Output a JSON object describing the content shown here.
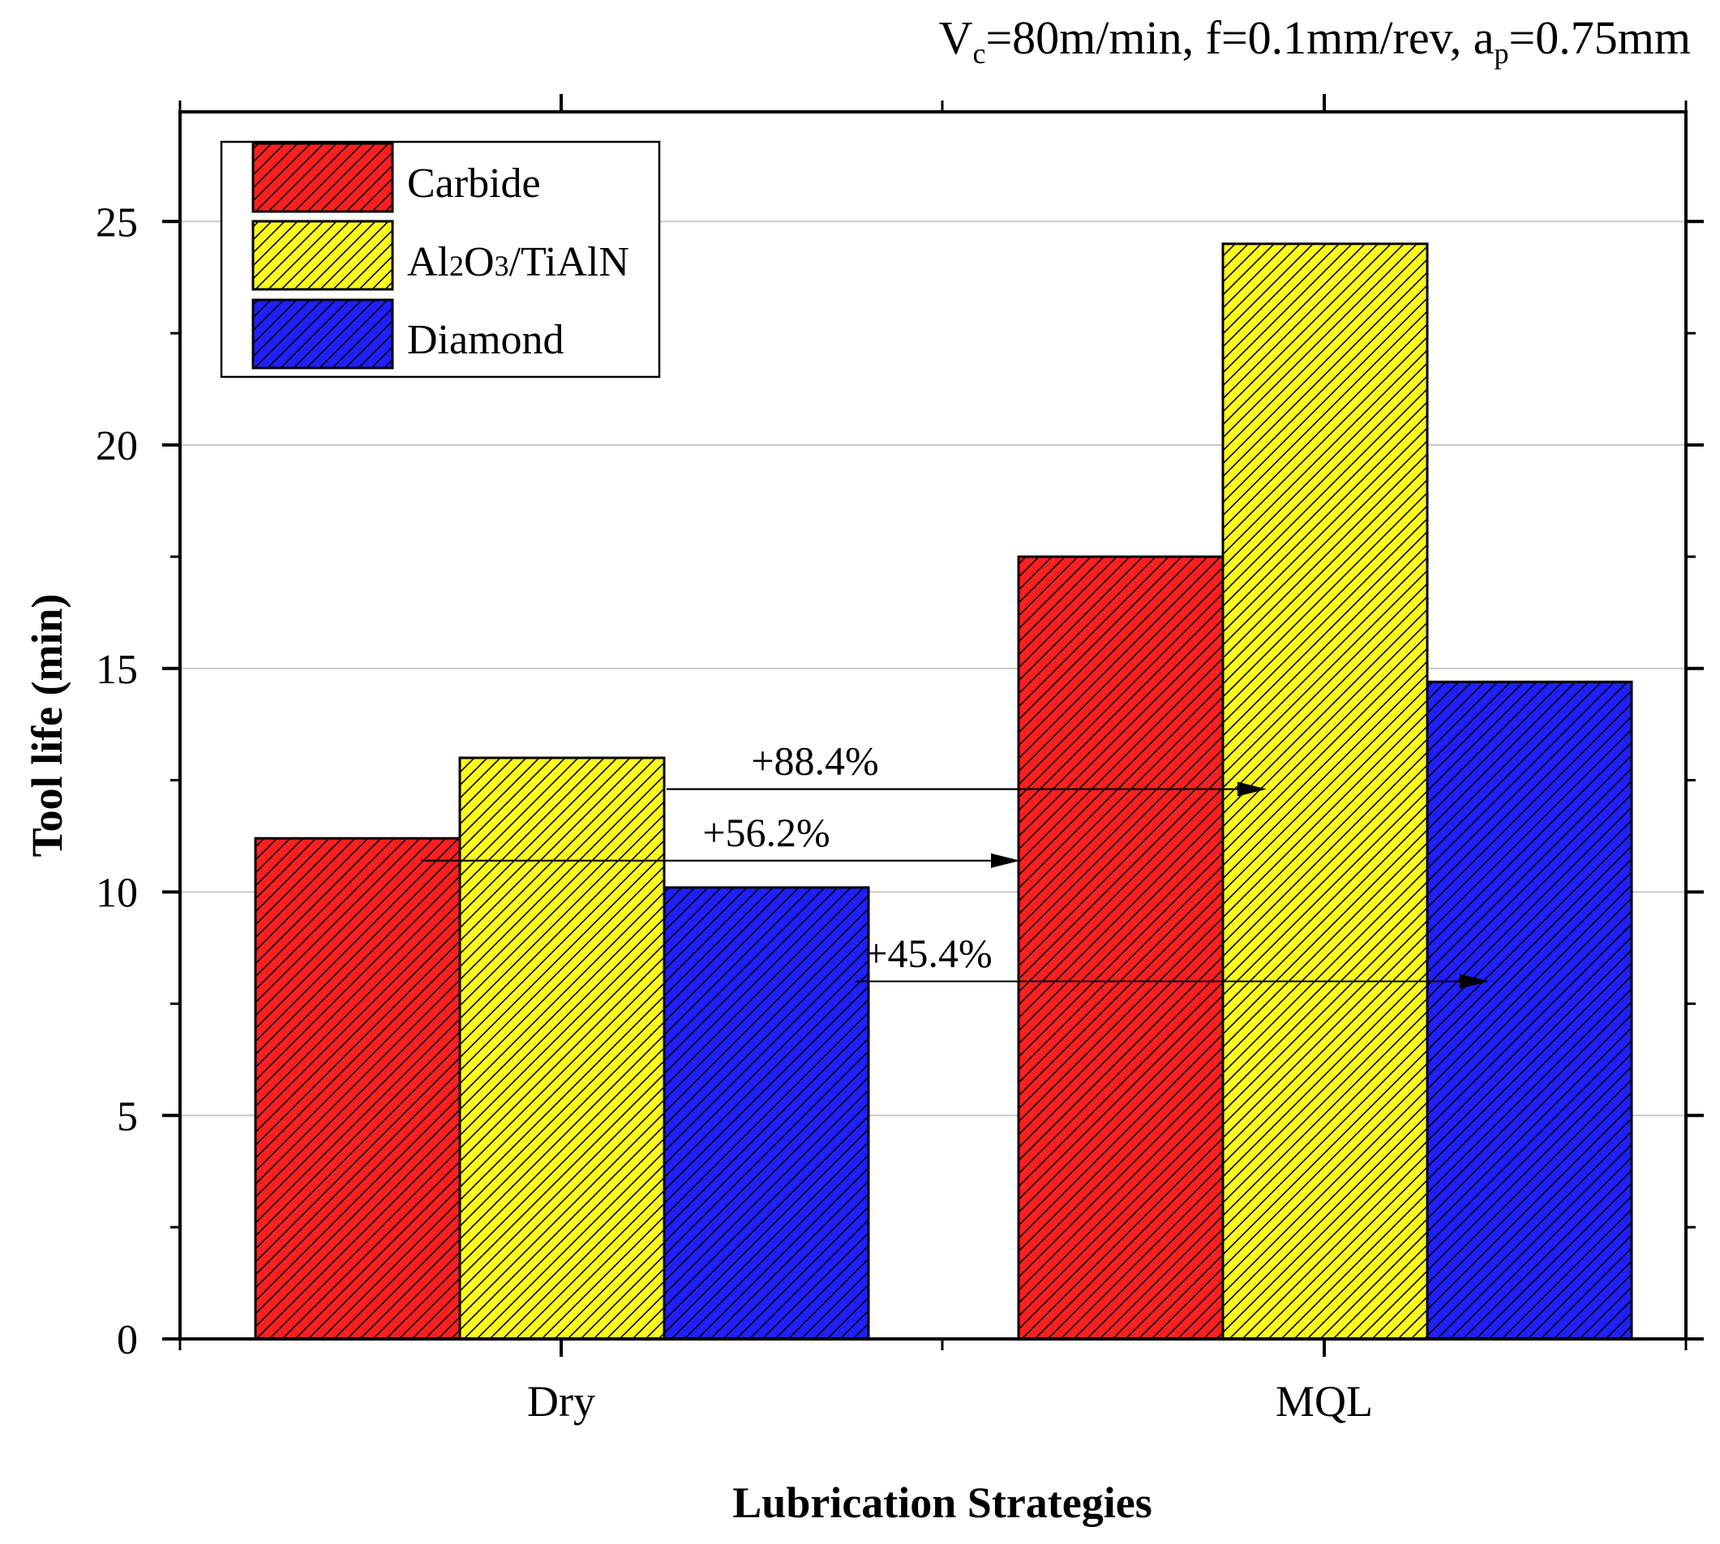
{
  "chart_data": {
    "type": "bar",
    "title": "",
    "subtitle_parts": {
      "v": "V",
      "v_sub": "c",
      "v_rest": "=80m/min, f=0.1mm/rev, a",
      "a_sub": "p",
      "a_rest": "=0.75mm"
    },
    "xlabel": "Lubrication Strategies",
    "ylabel": "Tool life (min)",
    "categories": [
      "Dry",
      "MQL"
    ],
    "ylim": [
      0,
      27.5
    ],
    "yticks": [
      0,
      5,
      10,
      15,
      20,
      25
    ],
    "ytick_labels": [
      "0",
      "5",
      "10",
      "15",
      "20",
      "25"
    ],
    "grid": true,
    "legend_position": "top-left",
    "series": [
      {
        "name": "Carbide",
        "values": [
          11.2,
          17.5
        ],
        "color": "#ff1f1f"
      },
      {
        "name": "Al2O3/TiAlN",
        "values": [
          13.0,
          24.5
        ],
        "color": "#ffff1a"
      },
      {
        "name": "Diamond",
        "values": [
          10.1,
          14.7
        ],
        "color": "#1f1fff"
      }
    ],
    "legend_labels": {
      "carbide": "Carbide",
      "al2o3": {
        "al": "Al",
        "two": "2",
        "o": "O",
        "three": "3",
        "rest": "/TiAlN"
      },
      "diamond": "Diamond"
    },
    "annotations": [
      {
        "text": "+88.4%",
        "from_series": 1,
        "from_category": 0,
        "to_series": 1,
        "to_category": 1,
        "arrow_y": 12.3
      },
      {
        "text": "+56.2%",
        "from_series": 0,
        "from_category": 0,
        "to_series": 0,
        "to_category": 1,
        "arrow_y": 10.7
      },
      {
        "text": "+45.4%",
        "from_series": 2,
        "from_category": 0,
        "to_series": 2,
        "to_category": 1,
        "arrow_y": 8.0
      }
    ]
  }
}
